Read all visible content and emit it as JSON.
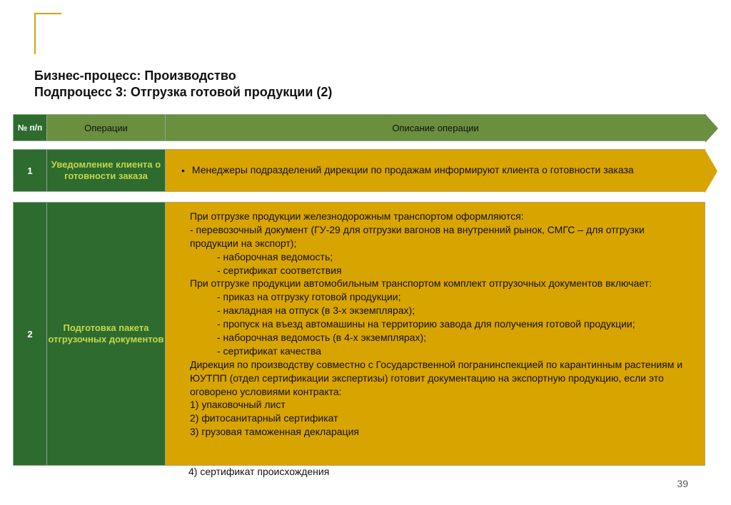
{
  "title": {
    "line1": "Бизнес-процесс: Производство",
    "line2": "Подпроцесс 3: Отгрузка готовой продукции (2)"
  },
  "header": {
    "num": "№ п/п",
    "ops": "Операции",
    "desc": "Описание операции"
  },
  "row1": {
    "num": "1",
    "op": "Уведомление клиента о готовности заказа",
    "desc": "Менеджеры подразделений дирекции по продажам информируют клиента о готовности заказа"
  },
  "row2": {
    "num": "2",
    "op": "Подготовка пакета отгрузочных документов",
    "lines": [
      {
        "t": "При отгрузке продукции железнодорожным транспортом оформляются:",
        "cls": "ind1"
      },
      {
        "t": "- перевозочный документ (ГУ-29 для отгрузки вагонов на внутренний рынок, СМГС – для отгрузки продукции на экспорт);",
        "cls": "ind1"
      },
      {
        "t": "- наборочная ведомость;",
        "cls": "ind3"
      },
      {
        "t": "- сертификат соответствия",
        "cls": "ind3"
      },
      {
        "t": "При отгрузке продукции автомобильным транспортом комплект отгрузочных документов включает:",
        "cls": "ind1"
      },
      {
        "t": "- приказ на отгрузку готовой продукции;",
        "cls": "ind3"
      },
      {
        "t": "- накладная на отпуск (в 3-х экземплярах);",
        "cls": "ind3"
      },
      {
        "t": "- пропуск на въезд автомашины на территорию завода для получения готовой продукции;",
        "cls": "ind3"
      },
      {
        "t": "- наборочная ведомость (в 4-х экземплярах);",
        "cls": "ind3"
      },
      {
        "t": "- сертификат качества",
        "cls": "ind3"
      },
      {
        "t": "Дирекция по производству совместно с Государственной погранинспекцией по карантинным растениям и ЮУТПП (отдел сертификации экспертизы) готовит документацию на экспортную продукцию, если это оговорено условиями контракта:",
        "cls": "ind1"
      },
      {
        "t": "1) упаковочный лист",
        "cls": "ind1"
      },
      {
        "t": "2) фитосанитарный сертификат",
        "cls": "ind1"
      },
      {
        "t": "3) грузовая таможенная декларация",
        "cls": "ind1"
      }
    ]
  },
  "overflow": "4) сертификат происхождения",
  "pageNumber": "39",
  "colors": {
    "darkGreen": "#2e6b2e",
    "oliveGreen": "#6a8f3f",
    "amber": "#d8a400",
    "limeText": "#c4d84a"
  }
}
